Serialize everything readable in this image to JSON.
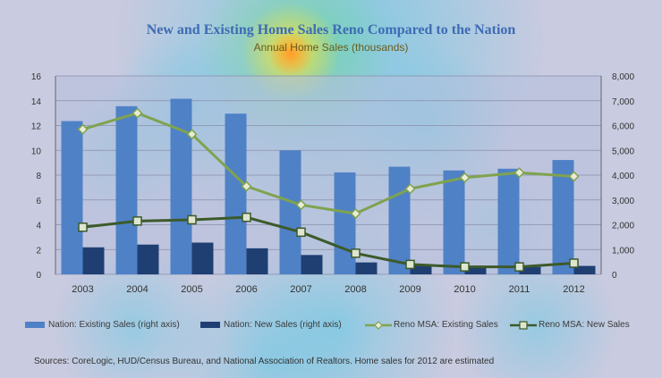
{
  "title": "New and Existing Home Sales Reno Compared to the Nation",
  "subtitle": "Annual Home Sales (thousands)",
  "sources": "Sources: CoreLogic, HUD/Census Bureau, and National Association of Realtors. Home sales for 2012 are estimated",
  "legend": {
    "nation_existing": "Nation: Existing Sales (right axis)",
    "nation_new": "Nation: New Sales (right axis)",
    "reno_existing": "Reno MSA: Existing Sales",
    "reno_new": "Reno MSA: New Sales"
  },
  "colors": {
    "nation_existing": "#4f81c7",
    "nation_new": "#1f3f73",
    "reno_existing": "#7fa34e",
    "reno_new": "#3c5a2a",
    "background": "#c9cbe0",
    "plot_bg": "#b7c0dd",
    "title": "#3e6bb4"
  },
  "chart_data": {
    "type": "bar",
    "title": "New and Existing Home Sales Reno Compared to the Nation",
    "subtitle": "Annual Home Sales (thousands)",
    "categories": [
      "2003",
      "2004",
      "2005",
      "2006",
      "2007",
      "2008",
      "2009",
      "2010",
      "2011",
      "2012"
    ],
    "left_axis": {
      "ylim": [
        0,
        16
      ],
      "ticks": [
        "0",
        "2",
        "4",
        "6",
        "8",
        "10",
        "12",
        "14",
        "16"
      ]
    },
    "right_axis": {
      "ylim": [
        0,
        8000
      ],
      "ticks": [
        "0",
        "1,000",
        "2,000",
        "3,000",
        "4,000",
        "5,000",
        "6,000",
        "7,000",
        "8,000"
      ]
    },
    "grid": true,
    "legend_position": "bottom",
    "series": [
      {
        "name": "Nation: Existing Sales (right axis)",
        "type": "bar",
        "axis": "right",
        "values": [
          6180,
          6780,
          7080,
          6480,
          5000,
          4110,
          4340,
          4190,
          4260,
          4610
        ]
      },
      {
        "name": "Nation: New Sales (right axis)",
        "type": "bar",
        "axis": "right",
        "values": [
          1090,
          1200,
          1280,
          1050,
          780,
          480,
          380,
          320,
          300,
          340
        ]
      },
      {
        "name": "Reno MSA: Existing Sales",
        "type": "line",
        "axis": "left",
        "values": [
          11.7,
          13.0,
          11.3,
          7.1,
          5.6,
          4.9,
          6.9,
          7.8,
          8.2,
          7.9
        ]
      },
      {
        "name": "Reno MSA: New Sales",
        "type": "line",
        "axis": "left",
        "values": [
          3.8,
          4.3,
          4.4,
          4.6,
          3.4,
          1.7,
          0.8,
          0.6,
          0.6,
          0.9
        ]
      }
    ]
  }
}
